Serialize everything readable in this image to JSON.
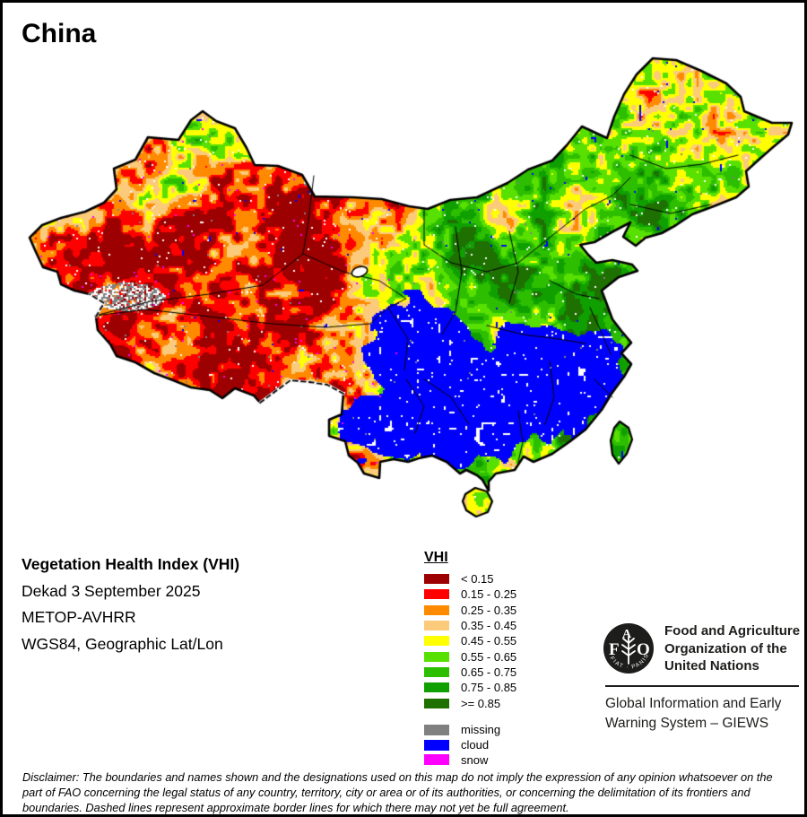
{
  "title": "China",
  "legend": {
    "title": "VHI",
    "classes": [
      {
        "label": "< 0.15",
        "color": "#9D0000"
      },
      {
        "label": "0.15 - 0.25",
        "color": "#FF0000"
      },
      {
        "label": "0.25 - 0.35",
        "color": "#FF8A00"
      },
      {
        "label": "0.35 - 0.45",
        "color": "#FBCB7B"
      },
      {
        "label": "0.45 - 0.55",
        "color": "#FFFF00"
      },
      {
        "label": "0.55 - 0.65",
        "color": "#58E000"
      },
      {
        "label": "0.65 - 0.75",
        "color": "#2EBE00"
      },
      {
        "label": "0.75 - 0.85",
        "color": "#0FA000"
      },
      {
        "label": ">= 0.85",
        "color": "#1E7000"
      }
    ],
    "extra_classes": [
      {
        "label": "missing",
        "color": "#808080"
      },
      {
        "label": "cloud",
        "color": "#0000FF"
      },
      {
        "label": "snow",
        "color": "#FF00FF"
      }
    ]
  },
  "info": {
    "product": "Vegetation Health Index (VHI)",
    "dekad": "Dekad 3 September 2025",
    "sensor": "METOP-AVHRR",
    "projection": "WGS84, Geographic Lat/Lon"
  },
  "fao": {
    "logo_letters": {
      "f": "F",
      "a": "A",
      "o": "O"
    },
    "logo_motto": "FIAT · PANIS",
    "org_lines": [
      "Food and Agriculture",
      "Organization of the",
      "United Nations"
    ],
    "giews_lines": [
      "Global Information and Early",
      "Warning System – GIEWS"
    ]
  },
  "map": {
    "outline_color": "#000000",
    "background": "#FFFFFF",
    "white_speck_color": "#FFFFFF"
  },
  "disclaimer": "Disclaimer: The boundaries and names shown and the designations used on this map do not imply the expression of any opinion whatsoever on the part of FAO concerning the legal status of any country, territory, city or area or of its authorities, or concerning the delimitation of its frontiers and boundaries. Dashed lines represent approximate border lines for which there may not yet be full agreement."
}
